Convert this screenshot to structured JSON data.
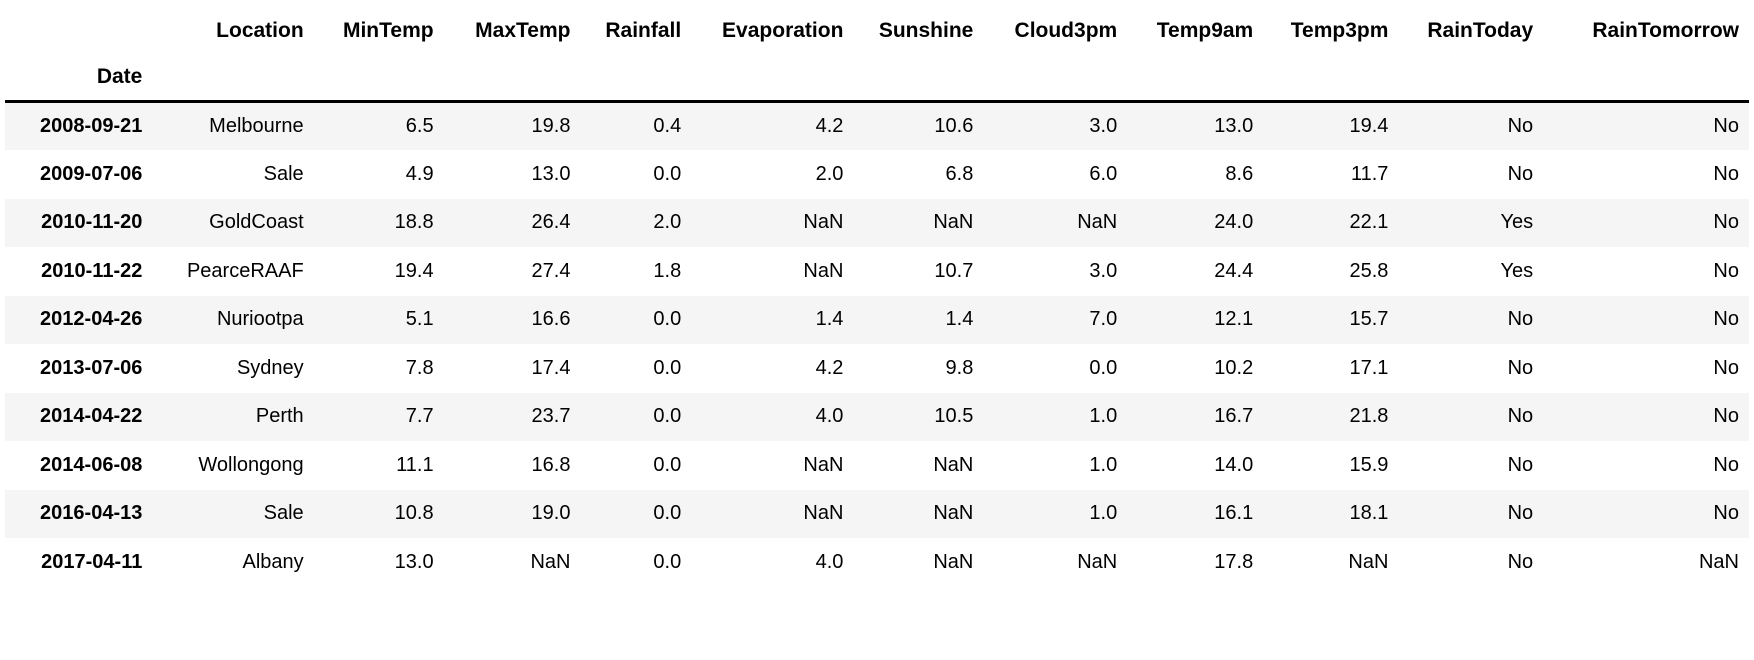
{
  "table": {
    "index_name": "Date",
    "columns": [
      "Location",
      "MinTemp",
      "MaxTemp",
      "Rainfall",
      "Evaporation",
      "Sunshine",
      "Cloud3pm",
      "Temp9am",
      "Temp3pm",
      "RainToday",
      "RainTomorrow"
    ],
    "rows": [
      {
        "date": "2008-09-21",
        "values": [
          "Melbourne",
          "6.5",
          "19.8",
          "0.4",
          "4.2",
          "10.6",
          "3.0",
          "13.0",
          "19.4",
          "No",
          "No"
        ]
      },
      {
        "date": "2009-07-06",
        "values": [
          "Sale",
          "4.9",
          "13.0",
          "0.0",
          "2.0",
          "6.8",
          "6.0",
          "8.6",
          "11.7",
          "No",
          "No"
        ]
      },
      {
        "date": "2010-11-20",
        "values": [
          "GoldCoast",
          "18.8",
          "26.4",
          "2.0",
          "NaN",
          "NaN",
          "NaN",
          "24.0",
          "22.1",
          "Yes",
          "No"
        ]
      },
      {
        "date": "2010-11-22",
        "values": [
          "PearceRAAF",
          "19.4",
          "27.4",
          "1.8",
          "NaN",
          "10.7",
          "3.0",
          "24.4",
          "25.8",
          "Yes",
          "No"
        ]
      },
      {
        "date": "2012-04-26",
        "values": [
          "Nuriootpa",
          "5.1",
          "16.6",
          "0.0",
          "1.4",
          "1.4",
          "7.0",
          "12.1",
          "15.7",
          "No",
          "No"
        ]
      },
      {
        "date": "2013-07-06",
        "values": [
          "Sydney",
          "7.8",
          "17.4",
          "0.0",
          "4.2",
          "9.8",
          "0.0",
          "10.2",
          "17.1",
          "No",
          "No"
        ]
      },
      {
        "date": "2014-04-22",
        "values": [
          "Perth",
          "7.7",
          "23.7",
          "0.0",
          "4.0",
          "10.5",
          "1.0",
          "16.7",
          "21.8",
          "No",
          "No"
        ]
      },
      {
        "date": "2014-06-08",
        "values": [
          "Wollongong",
          "11.1",
          "16.8",
          "0.0",
          "NaN",
          "NaN",
          "1.0",
          "14.0",
          "15.9",
          "No",
          "No"
        ]
      },
      {
        "date": "2016-04-13",
        "values": [
          "Sale",
          "10.8",
          "19.0",
          "0.0",
          "NaN",
          "NaN",
          "1.0",
          "16.1",
          "18.1",
          "No",
          "No"
        ]
      },
      {
        "date": "2017-04-11",
        "values": [
          "Albany",
          "13.0",
          "NaN",
          "0.0",
          "4.0",
          "NaN",
          "NaN",
          "17.8",
          "NaN",
          "No",
          "NaN"
        ]
      }
    ]
  },
  "chart_data": {
    "type": "table",
    "title": "",
    "index_name": "Date",
    "columns": [
      "Location",
      "MinTemp",
      "MaxTemp",
      "Rainfall",
      "Evaporation",
      "Sunshine",
      "Cloud3pm",
      "Temp9am",
      "Temp3pm",
      "RainToday",
      "RainTomorrow"
    ],
    "rows": [
      [
        "2008-09-21",
        "Melbourne",
        6.5,
        19.8,
        0.4,
        4.2,
        10.6,
        3.0,
        13.0,
        19.4,
        "No",
        "No"
      ],
      [
        "2009-07-06",
        "Sale",
        4.9,
        13.0,
        0.0,
        2.0,
        6.8,
        6.0,
        8.6,
        11.7,
        "No",
        "No"
      ],
      [
        "2010-11-20",
        "GoldCoast",
        18.8,
        26.4,
        2.0,
        "NaN",
        "NaN",
        "NaN",
        24.0,
        22.1,
        "Yes",
        "No"
      ],
      [
        "2010-11-22",
        "PearceRAAF",
        19.4,
        27.4,
        1.8,
        "NaN",
        10.7,
        3.0,
        24.4,
        25.8,
        "Yes",
        "No"
      ],
      [
        "2012-04-26",
        "Nuriootpa",
        5.1,
        16.6,
        0.0,
        1.4,
        1.4,
        7.0,
        12.1,
        15.7,
        "No",
        "No"
      ],
      [
        "2013-07-06",
        "Sydney",
        7.8,
        17.4,
        0.0,
        4.2,
        9.8,
        0.0,
        10.2,
        17.1,
        "No",
        "No"
      ],
      [
        "2014-04-22",
        "Perth",
        7.7,
        23.7,
        0.0,
        4.0,
        10.5,
        1.0,
        16.7,
        21.8,
        "No",
        "No"
      ],
      [
        "2014-06-08",
        "Wollongong",
        11.1,
        16.8,
        0.0,
        "NaN",
        "NaN",
        1.0,
        14.0,
        15.9,
        "No",
        "No"
      ],
      [
        "2016-04-13",
        "Sale",
        10.8,
        19.0,
        0.0,
        "NaN",
        "NaN",
        1.0,
        16.1,
        18.1,
        "No",
        "No"
      ],
      [
        "2017-04-11",
        "Albany",
        13.0,
        "NaN",
        0.0,
        4.0,
        "NaN",
        "NaN",
        17.8,
        "NaN",
        "No",
        "NaN"
      ]
    ],
    "layout": {
      "zebra_striping": true,
      "stripe_rows": "odd",
      "header_divider": true
    }
  },
  "colors": {
    "background": "#ffffff",
    "row_stripe": "#f5f5f5",
    "text": "#000000",
    "header_divider": "#000000"
  }
}
